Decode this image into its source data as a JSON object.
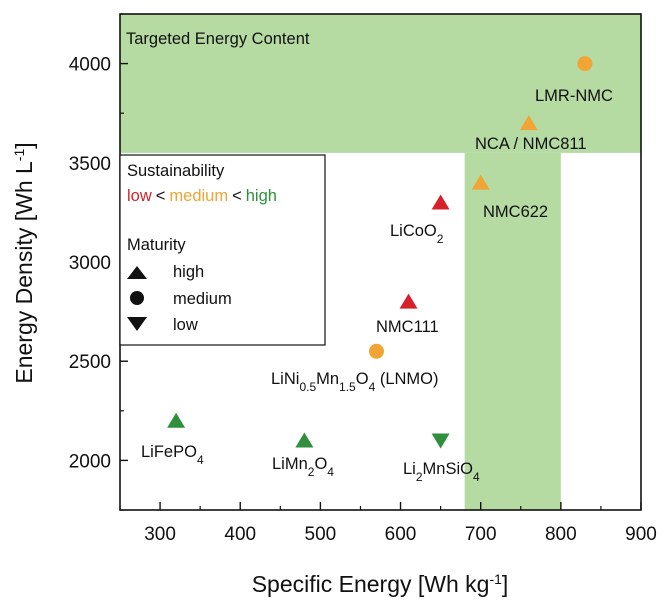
{
  "chart_data": {
    "type": "scatter",
    "xlabel": "Specific Energy [Wh kg",
    "xlabel_sup": "-1",
    "xlabel_end": "]",
    "ylabel": "Energy Density [Wh L",
    "ylabel_sup": "-1",
    "ylabel_end": "]",
    "xlim": [
      250,
      900
    ],
    "ylim": [
      1750,
      4250
    ],
    "xticks": [
      "300",
      "400",
      "500",
      "600",
      "700",
      "800",
      "900"
    ],
    "yticks": [
      "2000",
      "2500",
      "3000",
      "3500",
      "4000"
    ],
    "xtick_values": [
      300,
      400,
      500,
      600,
      700,
      800,
      900
    ],
    "ytick_values": [
      2000,
      2500,
      3000,
      3500,
      4000
    ],
    "target_region": {
      "label": "Targeted Energy Content",
      "horizontal_band_y": [
        3550,
        4250
      ],
      "vertical_band_x": [
        680,
        800
      ],
      "color": "#b5dba2"
    },
    "colors": {
      "low": "#d7212a",
      "medium": "#f0a534",
      "high": "#2f8f3c"
    },
    "points": [
      {
        "name": "LMR-NMC",
        "x": 830,
        "y": 4000,
        "sustainability": "medium",
        "maturity": "medium"
      },
      {
        "name": "NCA / NMC811",
        "x": 760,
        "y": 3700,
        "sustainability": "medium",
        "maturity": "high"
      },
      {
        "name": "NMC622",
        "x": 700,
        "y": 3400,
        "sustainability": "medium",
        "maturity": "high"
      },
      {
        "name": "LiCoO2",
        "x": 650,
        "y": 3300,
        "sustainability": "low",
        "maturity": "high"
      },
      {
        "name": "NMC111",
        "x": 610,
        "y": 2800,
        "sustainability": "low",
        "maturity": "high"
      },
      {
        "name": "LiNi0.5Mn1.5O4 (LNMO)",
        "x": 570,
        "y": 2550,
        "sustainability": "medium",
        "maturity": "medium"
      },
      {
        "name": "LiFePO4",
        "x": 320,
        "y": 2200,
        "sustainability": "high",
        "maturity": "high"
      },
      {
        "name": "LiMn2O4",
        "x": 480,
        "y": 2100,
        "sustainability": "high",
        "maturity": "high"
      },
      {
        "name": "Li2MnSiO4",
        "x": 650,
        "y": 2100,
        "sustainability": "high",
        "maturity": "low"
      }
    ],
    "legend": {
      "sustainability_title": "Sustainability",
      "sustainability_low": "low",
      "sustainability_medium": "medium",
      "sustainability_high": "high",
      "separator": "<",
      "maturity_title": "Maturity",
      "maturity_items": [
        "high",
        "medium",
        "low"
      ]
    }
  }
}
